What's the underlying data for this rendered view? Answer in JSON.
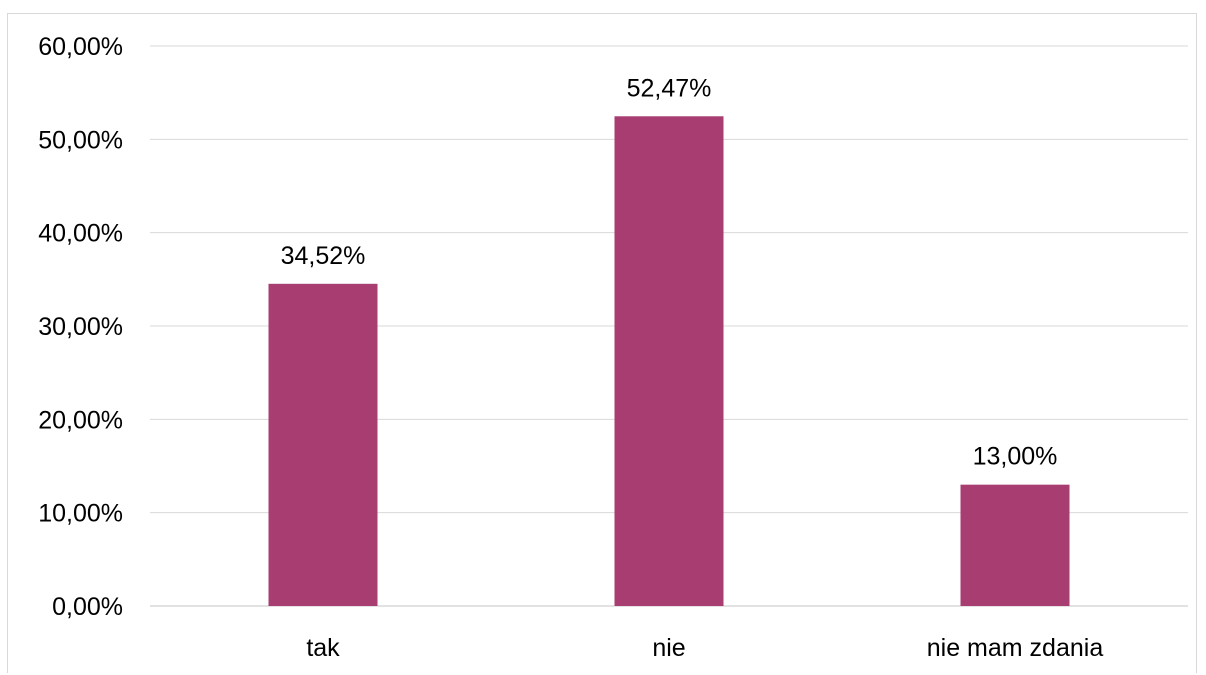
{
  "chart_data": {
    "type": "bar",
    "categories": [
      "tak",
      "nie",
      "nie mam zdania"
    ],
    "values": [
      34.52,
      52.47,
      13.0
    ],
    "data_labels": [
      "34,52%",
      "52,47%",
      "13,00%"
    ],
    "title": "",
    "xlabel": "",
    "ylabel": "",
    "ylim": [
      0,
      60
    ],
    "yticks": [
      0,
      10,
      20,
      30,
      40,
      50,
      60
    ],
    "ytick_labels": [
      "0,00%",
      "10,00%",
      "20,00%",
      "30,00%",
      "40,00%",
      "50,00%",
      "60,00%"
    ],
    "grid": true,
    "legend": "none",
    "bar_color": "#a83d71",
    "grid_color": "#d9d9d9"
  }
}
